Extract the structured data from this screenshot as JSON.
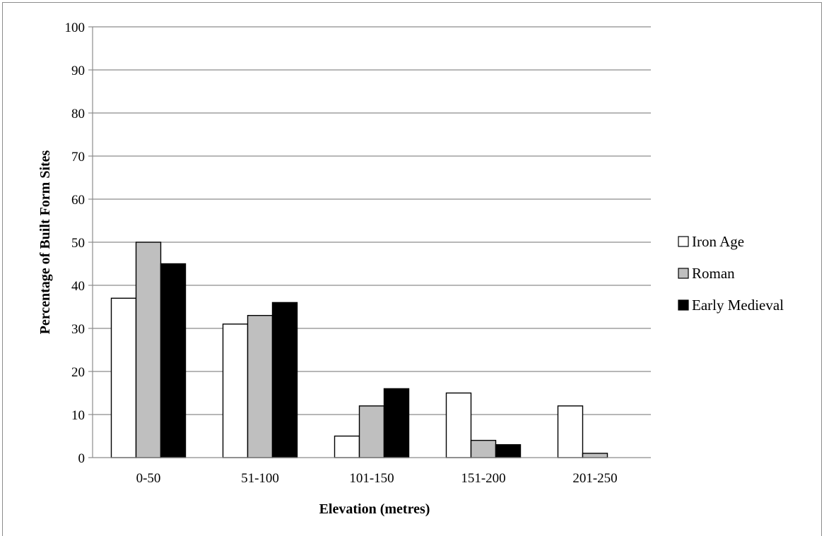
{
  "chart_data": {
    "type": "bar",
    "title": "",
    "xlabel": "Elevation (metres)",
    "ylabel": "Percentage of Built Form Sites",
    "ylim": [
      0,
      100
    ],
    "yticks": [
      0,
      10,
      20,
      30,
      40,
      50,
      60,
      70,
      80,
      90,
      100
    ],
    "grid": true,
    "legend_position": "right",
    "categories": [
      "0-50",
      "51-100",
      "101-150",
      "151-200",
      "201-250"
    ],
    "series": [
      {
        "name": "Iron Age",
        "color": "#ffffff",
        "values": [
          37,
          31,
          5,
          15,
          12
        ]
      },
      {
        "name": "Roman",
        "color": "#bfbfbf",
        "values": [
          50,
          33,
          12,
          4,
          1
        ]
      },
      {
        "name": "Early Medieval",
        "color": "#000000",
        "values": [
          45,
          36,
          16,
          3,
          0
        ]
      }
    ]
  }
}
